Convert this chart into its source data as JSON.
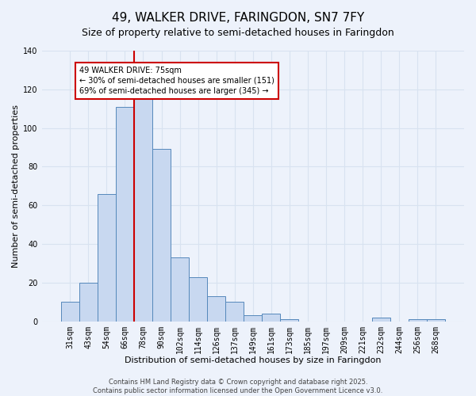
{
  "title": "49, WALKER DRIVE, FARINGDON, SN7 7FY",
  "subtitle": "Size of property relative to semi-detached houses in Faringdon",
  "xlabel": "Distribution of semi-detached houses by size in Faringdon",
  "ylabel": "Number of semi-detached properties",
  "bar_labels": [
    "31sqm",
    "43sqm",
    "54sqm",
    "66sqm",
    "78sqm",
    "90sqm",
    "102sqm",
    "114sqm",
    "126sqm",
    "137sqm",
    "149sqm",
    "161sqm",
    "173sqm",
    "185sqm",
    "197sqm",
    "209sqm",
    "221sqm",
    "232sqm",
    "244sqm",
    "256sqm",
    "268sqm"
  ],
  "bar_values": [
    10,
    20,
    66,
    111,
    115,
    89,
    33,
    23,
    13,
    10,
    3,
    4,
    1,
    0,
    0,
    0,
    0,
    2,
    0,
    1,
    1
  ],
  "bar_color": "#c8d8f0",
  "bar_edge_color": "#5588bb",
  "ylim": [
    0,
    140
  ],
  "yticks": [
    0,
    20,
    40,
    60,
    80,
    100,
    120,
    140
  ],
  "vline_x": 3.5,
  "annotation_text": "49 WALKER DRIVE: 75sqm\n← 30% of semi-detached houses are smaller (151)\n69% of semi-detached houses are larger (345) →",
  "annotation_box_color": "#ffffff",
  "annotation_box_edge_color": "#cc0000",
  "vline_color": "#cc0000",
  "footnote1": "Contains HM Land Registry data © Crown copyright and database right 2025.",
  "footnote2": "Contains public sector information licensed under the Open Government Licence v3.0.",
  "bg_color": "#edf2fb",
  "grid_color": "#d8e2f0",
  "title_fontsize": 11,
  "subtitle_fontsize": 9,
  "axis_label_fontsize": 8,
  "tick_fontsize": 7,
  "annotation_fontsize": 7,
  "footnote_fontsize": 6
}
